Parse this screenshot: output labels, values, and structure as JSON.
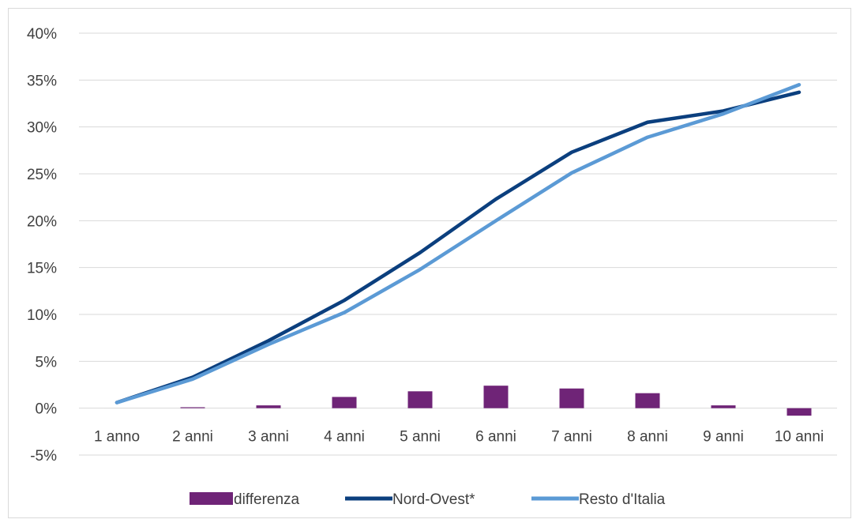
{
  "chart_data": {
    "type": "bar+line",
    "categories": [
      "1 anno",
      "2 anni",
      "3 anni",
      "4 anni",
      "5 anni",
      "6 anni",
      "7 anni",
      "8 anni",
      "9 anni",
      "10 anni"
    ],
    "series": [
      {
        "name": "differenza",
        "type": "bar",
        "color": "#6f2477",
        "values": [
          0.0,
          0.1,
          0.3,
          1.2,
          1.8,
          2.4,
          2.1,
          1.6,
          0.3,
          -0.8
        ]
      },
      {
        "name": "Nord-Ovest*",
        "type": "line",
        "color": "#0b3f7e",
        "values": [
          0.6,
          3.3,
          7.2,
          11.5,
          16.6,
          22.3,
          27.3,
          30.5,
          31.7,
          33.7
        ]
      },
      {
        "name": "Resto d'Italia",
        "type": "line",
        "color": "#5b9ad5",
        "values": [
          0.6,
          3.1,
          6.8,
          10.2,
          14.8,
          20.0,
          25.1,
          28.9,
          31.4,
          34.5
        ]
      }
    ],
    "y_axis": {
      "min": -5,
      "max": 40,
      "step": 5,
      "tick_labels": [
        "-5%",
        "0%",
        "5%",
        "10%",
        "15%",
        "20%",
        "25%",
        "30%",
        "35%",
        "40%"
      ]
    },
    "grid": true,
    "legend_position": "bottom"
  }
}
